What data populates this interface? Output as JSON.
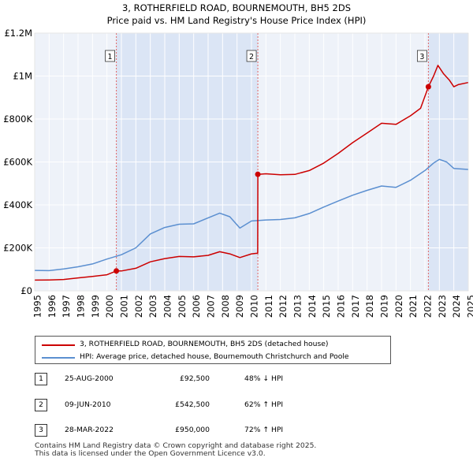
{
  "chart_data": {
    "type": "line",
    "title": "3, ROTHERFIELD ROAD, BOURNEMOUTH, BH5 2DS",
    "subtitle": "Price paid vs. HM Land Registry's House Price Index (HPI)",
    "xlim": [
      1995,
      2025
    ],
    "ylim": [
      0,
      1200000
    ],
    "y_ticks": [
      {
        "value": 0,
        "label": "£0"
      },
      {
        "value": 200000,
        "label": "£200K"
      },
      {
        "value": 400000,
        "label": "£400K"
      },
      {
        "value": 600000,
        "label": "£600K"
      },
      {
        "value": 800000,
        "label": "£800K"
      },
      {
        "value": 1000000,
        "label": "£1M"
      },
      {
        "value": 1200000,
        "label": "£1.2M"
      }
    ],
    "x_ticks": [
      "1995",
      "1996",
      "1997",
      "1998",
      "1999",
      "2000",
      "2001",
      "2002",
      "2003",
      "2004",
      "2005",
      "2006",
      "2007",
      "2008",
      "2009",
      "2010",
      "2011",
      "2012",
      "2013",
      "2014",
      "2015",
      "2016",
      "2017",
      "2018",
      "2019",
      "2020",
      "2021",
      "2022",
      "2023",
      "2024",
      "2025"
    ],
    "grid": true,
    "series": [
      {
        "name": "3, ROTHERFIELD ROAD, BOURNEMOUTH, BH5 2DS (detached house)",
        "color": "#cc0000",
        "points": [
          [
            1995.0,
            50000
          ],
          [
            1996.0,
            50500
          ],
          [
            1997.0,
            53000
          ],
          [
            1998.0,
            60000
          ],
          [
            1999.0,
            67000
          ],
          [
            2000.0,
            75000
          ],
          [
            2000.65,
            92500
          ],
          [
            2001.0,
            92500
          ],
          [
            2002.0,
            105000
          ],
          [
            2003.0,
            135000
          ],
          [
            2004.0,
            150000
          ],
          [
            2005.0,
            160000
          ],
          [
            2006.0,
            158000
          ],
          [
            2007.0,
            165000
          ],
          [
            2007.8,
            182000
          ],
          [
            2008.5,
            172000
          ],
          [
            2009.2,
            155000
          ],
          [
            2010.0,
            172000
          ],
          [
            2010.43,
            175000
          ],
          [
            2010.44,
            542500
          ],
          [
            2011.0,
            545000
          ],
          [
            2012.0,
            540000
          ],
          [
            2013.0,
            542000
          ],
          [
            2014.0,
            560000
          ],
          [
            2015.0,
            595000
          ],
          [
            2016.0,
            640000
          ],
          [
            2017.0,
            690000
          ],
          [
            2018.0,
            735000
          ],
          [
            2019.0,
            780000
          ],
          [
            2020.0,
            775000
          ],
          [
            2021.0,
            815000
          ],
          [
            2021.7,
            850000
          ],
          [
            2022.24,
            950000
          ],
          [
            2022.6,
            1000000
          ],
          [
            2022.9,
            1050000
          ],
          [
            2023.3,
            1010000
          ],
          [
            2023.7,
            980000
          ],
          [
            2024.0,
            950000
          ],
          [
            2024.3,
            960000
          ],
          [
            2025.0,
            970000
          ]
        ]
      },
      {
        "name": "HPI: Average price, detached house, Bournemouth Christchurch and Poole",
        "color": "#5b8fd0",
        "points": [
          [
            1995.0,
            95000
          ],
          [
            1996.0,
            94000
          ],
          [
            1997.0,
            102000
          ],
          [
            1998.0,
            112000
          ],
          [
            1999.0,
            125000
          ],
          [
            2000.0,
            148000
          ],
          [
            2001.0,
            168000
          ],
          [
            2002.0,
            200000
          ],
          [
            2003.0,
            265000
          ],
          [
            2004.0,
            295000
          ],
          [
            2005.0,
            310000
          ],
          [
            2006.0,
            312000
          ],
          [
            2007.0,
            340000
          ],
          [
            2007.8,
            362000
          ],
          [
            2008.5,
            345000
          ],
          [
            2009.2,
            292000
          ],
          [
            2010.0,
            325000
          ],
          [
            2011.0,
            330000
          ],
          [
            2012.0,
            332000
          ],
          [
            2013.0,
            340000
          ],
          [
            2014.0,
            360000
          ],
          [
            2015.0,
            390000
          ],
          [
            2016.0,
            418000
          ],
          [
            2017.0,
            445000
          ],
          [
            2018.0,
            468000
          ],
          [
            2019.0,
            488000
          ],
          [
            2020.0,
            482000
          ],
          [
            2021.0,
            515000
          ],
          [
            2022.0,
            560000
          ],
          [
            2022.6,
            595000
          ],
          [
            2023.0,
            612000
          ],
          [
            2023.5,
            600000
          ],
          [
            2024.0,
            570000
          ],
          [
            2025.0,
            565000
          ]
        ]
      }
    ],
    "annotations": [
      {
        "label": "1",
        "x": 2000.65,
        "y": 92500
      },
      {
        "label": "2",
        "x": 2010.44,
        "y": 542500
      },
      {
        "label": "3",
        "x": 2022.24,
        "y": 950000
      }
    ],
    "shaded_regions": [
      [
        2000.65,
        2010.44
      ],
      [
        2022.24,
        2025
      ]
    ]
  },
  "legend": [
    {
      "label": "3, ROTHERFIELD ROAD, BOURNEMOUTH, BH5 2DS (detached house)",
      "color": "#cc0000"
    },
    {
      "label": "HPI: Average price, detached house, Bournemouth Christchurch and Poole",
      "color": "#5b8fd0"
    }
  ],
  "transactions": [
    {
      "num": "1",
      "date": "25-AUG-2000",
      "price": "£92,500",
      "hpi": "48% ↓ HPI"
    },
    {
      "num": "2",
      "date": "09-JUN-2010",
      "price": "£542,500",
      "hpi": "62% ↑ HPI"
    },
    {
      "num": "3",
      "date": "28-MAR-2022",
      "price": "£950,000",
      "hpi": "72% ↑ HPI"
    }
  ],
  "footer": {
    "line1": "Contains HM Land Registry data © Crown copyright and database right 2025.",
    "line2": "This data is licensed under the Open Government Licence v3.0."
  }
}
